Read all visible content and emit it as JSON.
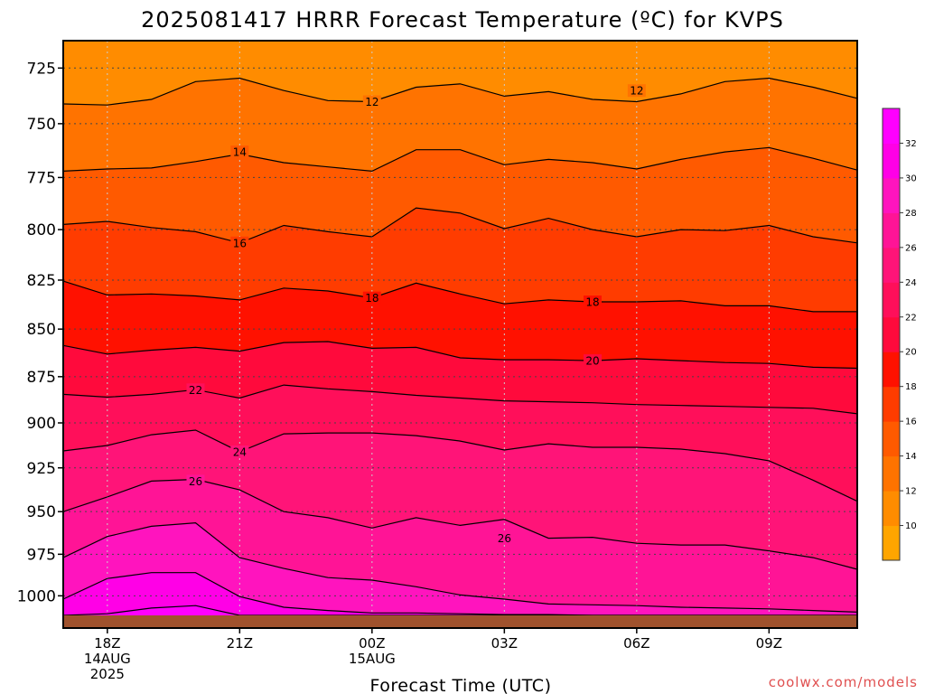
{
  "chart_data": {
    "type": "contour",
    "title": "2025081417 HRRR Forecast Temperature (ºC) for KVPS",
    "xlabel": "Forecast Time (UTC)",
    "ylabel": "",
    "credit": "coolwx.com/models",
    "x_hours": [
      0,
      1,
      2,
      3,
      4,
      5,
      6,
      7,
      8,
      9,
      10,
      11,
      12,
      13,
      14,
      15,
      16,
      17,
      18
    ],
    "x_ticks": [
      {
        "hour": 1,
        "lines": [
          "18Z",
          "14AUG",
          "2025"
        ]
      },
      {
        "hour": 4,
        "lines": [
          "21Z"
        ]
      },
      {
        "hour": 7,
        "lines": [
          "00Z",
          "15AUG"
        ]
      },
      {
        "hour": 10,
        "lines": [
          "03Z"
        ]
      },
      {
        "hour": 13,
        "lines": [
          "06Z"
        ]
      },
      {
        "hour": 16,
        "lines": [
          "09Z"
        ]
      }
    ],
    "y_ticks": [
      725,
      750,
      775,
      800,
      825,
      850,
      875,
      900,
      925,
      950,
      975,
      1000
    ],
    "ylim": [
      1012,
      713
    ],
    "y_scale": "log-pressure",
    "surface_pressure_hpa": 1012,
    "grid": true,
    "contour_interval": 2,
    "contours": [
      {
        "level": 10,
        "p": [
          713,
          713,
          713,
          713,
          713,
          713,
          713,
          713,
          713,
          713,
          713,
          713,
          713,
          713,
          713,
          713,
          713,
          713,
          713
        ]
      },
      {
        "level": 12,
        "p": [
          741,
          741.5,
          739,
          731,
          729.5,
          735,
          739.5,
          740,
          733.5,
          732,
          737.5,
          735.5,
          739,
          740,
          736.5,
          731,
          729.5,
          733.5,
          738.5
        ]
      },
      {
        "level": 14,
        "p": [
          772,
          771,
          770.5,
          767.5,
          764,
          768,
          770,
          772,
          762,
          762,
          769,
          766.5,
          768,
          771,
          766.5,
          763,
          761,
          766,
          771.5
        ]
      },
      {
        "level": 16,
        "p": [
          797.5,
          796,
          799,
          801,
          806.5,
          798,
          801,
          803.5,
          789.5,
          792,
          799.5,
          794.5,
          800,
          803.5,
          800,
          800.5,
          798,
          803.5,
          806.5
        ]
      },
      {
        "level": 18,
        "p": [
          825.5,
          832.5,
          832,
          833,
          835,
          829,
          830.5,
          834,
          826.5,
          832,
          837,
          835,
          836,
          836,
          835.5,
          838,
          838,
          841,
          841
        ]
      },
      {
        "level": 20,
        "p": [
          858.5,
          863,
          861,
          859.5,
          861.5,
          857,
          856.5,
          860,
          859.5,
          865,
          866,
          866,
          866.5,
          865.5,
          866.5,
          867.5,
          868,
          870,
          870.5
        ]
      },
      {
        "level": 22,
        "p": [
          884.5,
          886,
          884.5,
          882,
          886.5,
          879.5,
          881.5,
          883,
          885,
          886.5,
          888,
          888.5,
          889,
          890,
          890.5,
          891,
          891.5,
          892,
          895
        ]
      },
      {
        "level": 24,
        "p": [
          915.5,
          912.5,
          906.5,
          904,
          916,
          906,
          905.5,
          905.5,
          907,
          910,
          915,
          911.5,
          913.5,
          913.5,
          914.5,
          917,
          921,
          932,
          944
        ]
      },
      {
        "level": 26,
        "p": [
          950,
          941.5,
          932.5,
          931.5,
          937.5,
          950,
          953.5,
          959.5,
          953.5,
          958,
          954.5,
          965.5,
          965,
          968.5,
          969.5,
          969.5,
          973,
          977,
          984
        ]
      },
      {
        "level": 28,
        "p": [
          977,
          964.5,
          958.5,
          956.5,
          977,
          983.5,
          989,
          990.5,
          994.5,
          999.5,
          1002,
          1005,
          1005.5,
          1006,
          1007,
          1007.5,
          1008,
          1009,
          1010
        ]
      },
      {
        "level": 30,
        "p": [
          1002,
          989.5,
          986,
          986,
          1000.5,
          1007,
          1009,
          1010.5,
          1010.5,
          1011,
          1011.5,
          1011.5,
          1012,
          1012,
          1012,
          1012,
          1012,
          1012,
          1012
        ]
      },
      {
        "level": 32,
        "p": [
          1012,
          1011,
          1007.5,
          1006,
          1012,
          1012,
          1012,
          1012,
          1012,
          1012,
          1012,
          1012,
          1012,
          1012,
          1012,
          1012,
          1012,
          1012,
          1012
        ]
      }
    ],
    "contour_labels": [
      {
        "text": "12",
        "hour": 7,
        "p": 740
      },
      {
        "text": "12",
        "hour": 13,
        "p": 735
      },
      {
        "text": "14",
        "hour": 4,
        "p": 763
      },
      {
        "text": "16",
        "hour": 4,
        "p": 806.5
      },
      {
        "text": "18",
        "hour": 7,
        "p": 834
      },
      {
        "text": "18",
        "hour": 12,
        "p": 836
      },
      {
        "text": "20",
        "hour": 12,
        "p": 866.5
      },
      {
        "text": "22",
        "hour": 3,
        "p": 882
      },
      {
        "text": "24",
        "hour": 4,
        "p": 916
      },
      {
        "text": "26",
        "hour": 3,
        "p": 932.5
      },
      {
        "text": "26",
        "hour": 10,
        "p": 965.5
      }
    ],
    "colorbar": {
      "labels": [
        10,
        12,
        14,
        16,
        18,
        20,
        22,
        24,
        26,
        28,
        30,
        32
      ],
      "colors": [
        "#ffa500",
        "#ff8c00",
        "#ff7300",
        "#ff5a00",
        "#ff3c00",
        "#ff1100",
        "#ff0a3c",
        "#ff0f5a",
        "#ff1478",
        "#ff1496",
        "#ff14be",
        "#ff00e6",
        "#ff00ff"
      ]
    },
    "ground_color": "#a0522d"
  }
}
